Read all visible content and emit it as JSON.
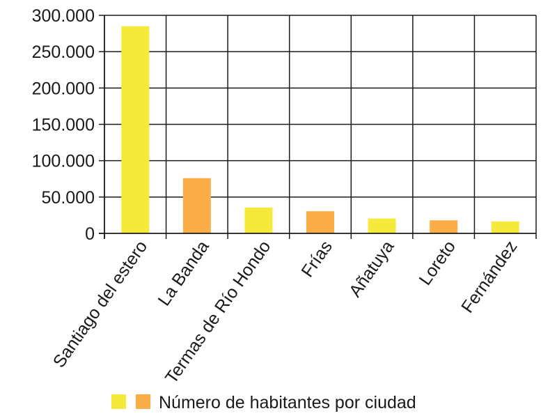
{
  "chart_data": {
    "type": "bar",
    "categories": [
      "Santiago del estero",
      "La Banda",
      "Termas de Río Hondo",
      "Frías",
      "Añatuya",
      "Loreto",
      "Fernández"
    ],
    "values": [
      285000,
      76000,
      35500,
      30500,
      20500,
      18000,
      16500
    ],
    "bar_colors": [
      "#f5ea3b",
      "#fbae48",
      "#f5ea3b",
      "#fbae48",
      "#f5ea3b",
      "#fbae48",
      "#f5ea3b"
    ],
    "y_ticks": [
      0,
      50000,
      100000,
      150000,
      200000,
      250000,
      300000
    ],
    "y_tick_labels": [
      "0",
      "50.000",
      "100.000",
      "150.000",
      "200.000",
      "250.000",
      "300.000"
    ],
    "ylim": [
      0,
      300000
    ],
    "grid": true,
    "legend": {
      "placement": "bottom",
      "label": "Número de habitantes por ciudad",
      "swatch_colors": [
        "#f5ea3b",
        "#fbae48"
      ]
    }
  }
}
